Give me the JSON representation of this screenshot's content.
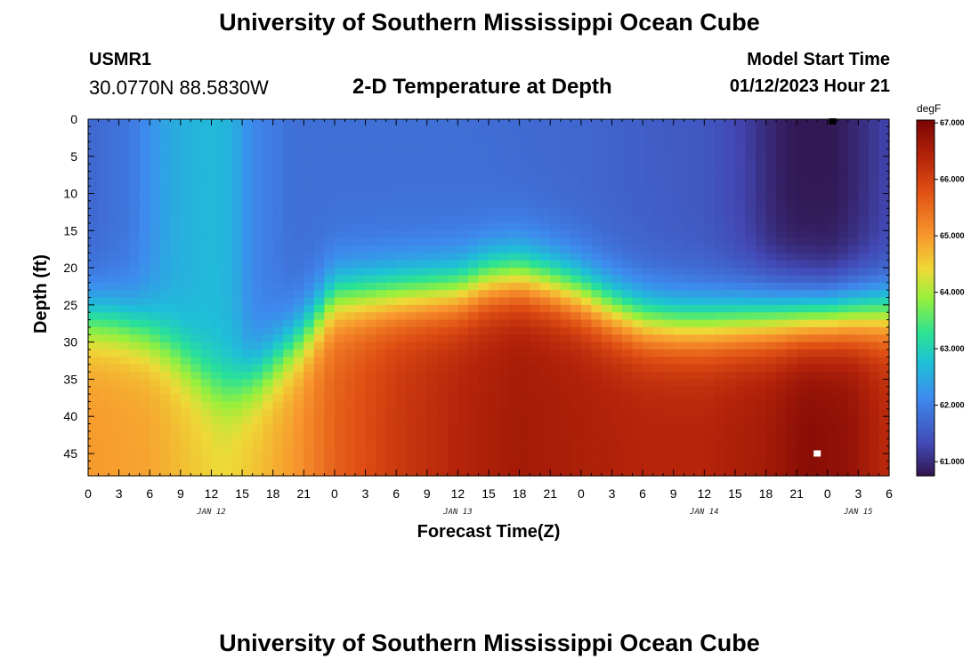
{
  "header": {
    "title_top": "University of Southern Mississippi Ocean Cube",
    "title_bottom": "University of Southern Mississippi Ocean Cube",
    "station_id": "USMR1",
    "station_coords": "30.0770N  88.5830W",
    "chart_title": "2-D Temperature at Depth",
    "run_label": "Model Start Time",
    "run_value": "01/12/2023 Hour 21"
  },
  "chart_data": {
    "type": "heatmap",
    "title": "2-D Temperature at Depth",
    "xlabel": "Forecast Time(Z)",
    "ylabel": "Depth (ft)",
    "x_range_hours": [
      0,
      78
    ],
    "x_tick_hours": [
      0,
      3,
      6,
      9,
      12,
      15,
      18,
      21,
      24,
      27,
      30,
      33,
      36,
      39,
      42,
      45,
      48,
      51,
      54,
      57,
      60,
      63,
      66,
      69,
      72,
      75,
      78
    ],
    "x_tick_labels": [
      "0",
      "3",
      "6",
      "9",
      "12",
      "15",
      "18",
      "21",
      "0",
      "3",
      "6",
      "9",
      "12",
      "15",
      "18",
      "21",
      "0",
      "3",
      "6",
      "9",
      "12",
      "15",
      "18",
      "21",
      "0",
      "3",
      "6"
    ],
    "day_labels": [
      {
        "text": "JAN 12",
        "hour": 12
      },
      {
        "text": "JAN 13",
        "hour": 36
      },
      {
        "text": "JAN 14",
        "hour": 60
      },
      {
        "text": "JAN 15",
        "hour": 75
      }
    ],
    "y_range": [
      0,
      48
    ],
    "y_inverted": true,
    "y_ticks": [
      0,
      5,
      10,
      15,
      20,
      25,
      30,
      35,
      40,
      45
    ],
    "colorbar": {
      "unit": "degF",
      "min": 60.75,
      "max": 67.05,
      "tick_values": [
        61,
        62,
        63,
        64,
        65,
        66,
        67
      ],
      "tick_labels": [
        "61.000",
        "62.000",
        "63.000",
        "64.000",
        "65.000",
        "66.000",
        "67.000"
      ]
    },
    "thermocline_depth_ft": {
      "hours": [
        0,
        3,
        6,
        9,
        12,
        14,
        17,
        21,
        24,
        30,
        36,
        39,
        42,
        45,
        48,
        51,
        54,
        57,
        60,
        66,
        72,
        78
      ],
      "values": [
        27,
        27.5,
        29,
        32,
        35.5,
        36.5,
        34,
        29,
        24,
        23.5,
        23,
        21.5,
        21,
        22,
        23.5,
        25.5,
        27,
        27.5,
        27.5,
        27,
        26.5,
        26
      ]
    },
    "surface_temp_degF": {
      "hours": [
        0,
        4,
        8,
        12,
        14,
        16,
        20,
        26,
        36,
        48,
        54,
        60,
        64,
        68,
        72,
        78
      ],
      "values": [
        61.7,
        61.9,
        62.5,
        62.7,
        62.6,
        62.1,
        61.8,
        61.8,
        61.8,
        61.7,
        61.6,
        61.5,
        61.3,
        61.0,
        60.8,
        61.3
      ]
    },
    "bottom_temp_degF": {
      "hours": [
        0,
        6,
        10,
        13,
        16,
        20,
        24,
        30,
        36,
        42,
        48,
        54,
        60,
        66,
        70,
        74,
        78
      ],
      "values": [
        65.0,
        64.9,
        64.6,
        64.4,
        64.6,
        65.0,
        65.6,
        66.1,
        66.4,
        66.6,
        66.5,
        66.4,
        66.4,
        66.6,
        66.9,
        66.8,
        66.3
      ]
    },
    "cold_core": {
      "center_hour": 70,
      "center_depth_ft": 7,
      "min_degF": 60.8,
      "bottom_depth_ft": 18
    },
    "markers": [
      {
        "hour": 71,
        "depth_ft": 45,
        "color": "#ffffff"
      },
      {
        "hour": 72.5,
        "depth_ft": 0.3,
        "color": "#000000"
      }
    ]
  }
}
